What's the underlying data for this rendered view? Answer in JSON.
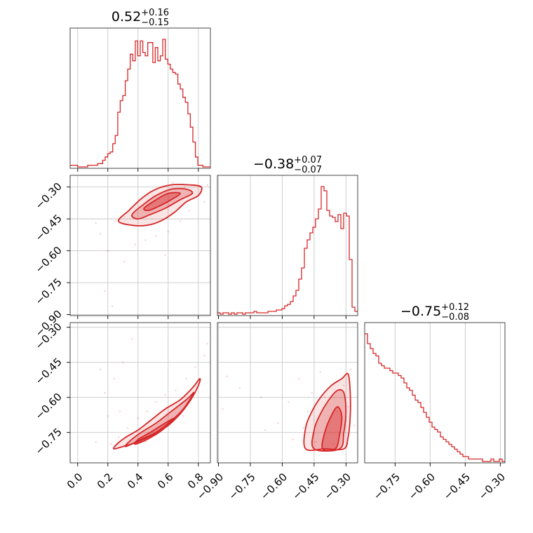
{
  "chart_data": {
    "type": "scatter",
    "plot": "corner",
    "color": "#d62728",
    "panel_count": 3,
    "parameters": [
      {
        "median": 0.52,
        "plus": 0.16,
        "minus": 0.15,
        "title": {
          "main": "0.52",
          "sup": "+0.16",
          "sub": "−0.15"
        },
        "range": [
          -0.05,
          0.88
        ],
        "ticks": [
          {
            "v": 0.0,
            "label": "0.0"
          },
          {
            "v": 0.2,
            "label": "0.2"
          },
          {
            "v": 0.4,
            "label": "0.4"
          },
          {
            "v": 0.6,
            "label": "0.6"
          },
          {
            "v": 0.8,
            "label": "0.8"
          }
        ]
      },
      {
        "median": -0.38,
        "plus": 0.07,
        "minus": 0.07,
        "title": {
          "main": "−0.38",
          "sup": "+0.07",
          "sub": "−0.07"
        },
        "range": [
          -0.905,
          -0.245
        ],
        "ticks": [
          {
            "v": -0.9,
            "label": "−0.90"
          },
          {
            "v": -0.75,
            "label": "−0.75"
          },
          {
            "v": -0.6,
            "label": "−0.60"
          },
          {
            "v": -0.45,
            "label": "−0.45"
          },
          {
            "v": -0.3,
            "label": "−0.30"
          }
        ]
      },
      {
        "median": -0.75,
        "plus": 0.12,
        "minus": 0.08,
        "title": {
          "main": "−0.75",
          "sup": "+0.12",
          "sub": "−0.08"
        },
        "range": [
          -0.88,
          -0.28
        ],
        "ticks": [
          {
            "v": -0.75,
            "label": "−0.75"
          },
          {
            "v": -0.6,
            "label": "−0.60"
          },
          {
            "v": -0.45,
            "label": "−0.45"
          },
          {
            "v": -0.3,
            "label": "−0.30"
          }
        ]
      }
    ],
    "histograms": [
      {
        "param": 0,
        "lo": -0.05,
        "hi": 0.88,
        "counts": [
          1,
          1,
          1,
          0,
          0,
          0,
          0,
          1,
          1,
          1,
          1,
          2,
          2,
          4,
          6,
          8,
          9,
          14,
          19,
          33,
          40,
          43,
          52,
          59,
          68,
          64,
          76,
          67,
          76,
          69,
          67,
          75,
          75,
          63,
          72,
          64,
          67,
          77,
          65,
          62,
          59,
          57,
          56,
          50,
          47,
          42,
          39,
          32,
          24,
          15,
          6,
          1,
          1,
          0,
          0,
          0
        ]
      },
      {
        "param": 1,
        "lo": -0.905,
        "hi": -0.245,
        "counts": [
          1,
          0,
          1,
          1,
          0,
          1,
          0,
          1,
          1,
          0,
          1,
          1,
          1,
          2,
          1,
          1,
          1,
          1,
          2,
          2,
          2,
          3,
          3,
          4,
          6,
          7,
          9,
          13,
          17,
          25,
          33,
          47,
          53,
          58,
          62,
          68,
          75,
          91,
          88,
          74,
          70,
          69,
          66,
          71,
          61,
          72,
          70,
          39,
          5,
          2
        ]
      },
      {
        "param": 2,
        "lo": -0.88,
        "hi": -0.28,
        "counts": [
          52,
          48,
          46,
          44,
          43,
          40,
          39,
          38,
          38,
          37,
          36,
          36,
          35,
          34,
          32,
          30,
          29,
          27,
          25,
          24,
          22,
          20,
          18,
          16,
          14,
          13,
          12,
          10,
          9,
          8,
          7,
          6,
          5,
          4,
          3,
          2,
          2,
          1,
          1,
          1,
          1,
          1,
          0,
          0,
          0,
          1,
          0,
          0,
          1,
          0
        ]
      }
    ],
    "pairs": [
      {
        "x": 0,
        "y": 1,
        "points": [
          [
            0.78,
            -0.29
          ],
          [
            0.71,
            -0.3
          ],
          [
            0.63,
            -0.28
          ],
          [
            0.55,
            -0.3
          ],
          [
            0.48,
            -0.32
          ],
          [
            0.41,
            -0.36
          ],
          [
            0.35,
            -0.4
          ],
          [
            0.29,
            -0.44
          ],
          [
            0.25,
            -0.46
          ],
          [
            0.2,
            -0.6
          ],
          [
            0.18,
            -0.79
          ],
          [
            0.23,
            -0.86
          ],
          [
            0.31,
            -0.65
          ],
          [
            0.38,
            -0.57
          ],
          [
            0.45,
            -0.55
          ],
          [
            0.52,
            -0.53
          ],
          [
            0.6,
            -0.51
          ],
          [
            0.68,
            -0.46
          ],
          [
            0.74,
            -0.41
          ],
          [
            0.84,
            -0.37
          ],
          [
            0.86,
            -0.29
          ],
          [
            0.15,
            -0.52
          ],
          [
            0.12,
            -0.47
          ],
          [
            0.58,
            -0.62
          ]
        ],
        "contours": [
          [
            [
              0.27,
              -0.46
            ],
            [
              0.34,
              -0.41
            ],
            [
              0.43,
              -0.35
            ],
            [
              0.52,
              -0.31
            ],
            [
              0.62,
              -0.29
            ],
            [
              0.74,
              -0.29
            ],
            [
              0.82,
              -0.3
            ],
            [
              0.8,
              -0.34
            ],
            [
              0.72,
              -0.37
            ],
            [
              0.64,
              -0.42
            ],
            [
              0.55,
              -0.46
            ],
            [
              0.46,
              -0.48
            ],
            [
              0.36,
              -0.48
            ]
          ],
          [
            [
              0.36,
              -0.43
            ],
            [
              0.44,
              -0.38
            ],
            [
              0.52,
              -0.34
            ],
            [
              0.62,
              -0.31
            ],
            [
              0.72,
              -0.31
            ],
            [
              0.76,
              -0.33
            ],
            [
              0.68,
              -0.36
            ],
            [
              0.58,
              -0.4
            ],
            [
              0.48,
              -0.43
            ],
            [
              0.4,
              -0.45
            ]
          ],
          [
            [
              0.44,
              -0.4
            ],
            [
              0.52,
              -0.36
            ],
            [
              0.6,
              -0.33
            ],
            [
              0.68,
              -0.33
            ],
            [
              0.62,
              -0.36
            ],
            [
              0.54,
              -0.39
            ],
            [
              0.47,
              -0.41
            ]
          ]
        ]
      },
      {
        "x": 0,
        "y": 2,
        "points": [
          [
            0.22,
            -0.8
          ],
          [
            0.27,
            -0.77
          ],
          [
            0.33,
            -0.73
          ],
          [
            0.4,
            -0.69
          ],
          [
            0.46,
            -0.66
          ],
          [
            0.52,
            -0.62
          ],
          [
            0.58,
            -0.59
          ],
          [
            0.65,
            -0.57
          ],
          [
            0.72,
            -0.52
          ],
          [
            0.78,
            -0.47
          ],
          [
            0.84,
            -0.42
          ],
          [
            0.86,
            -0.37
          ],
          [
            0.2,
            -0.68
          ],
          [
            0.18,
            -0.58
          ],
          [
            0.24,
            -0.52
          ],
          [
            0.3,
            -0.45
          ],
          [
            0.15,
            -0.48
          ],
          [
            0.36,
            -0.35
          ],
          [
            0.52,
            -0.76
          ],
          [
            0.6,
            -0.72
          ],
          [
            0.7,
            -0.68
          ],
          [
            0.28,
            -0.66
          ],
          [
            0.12,
            -0.79
          ],
          [
            0.45,
            -0.79
          ]
        ],
        "contours": [
          [
            [
              0.24,
              -0.82
            ],
            [
              0.3,
              -0.81
            ],
            [
              0.4,
              -0.79
            ],
            [
              0.5,
              -0.76
            ],
            [
              0.6,
              -0.72
            ],
            [
              0.68,
              -0.67
            ],
            [
              0.75,
              -0.61
            ],
            [
              0.8,
              -0.55
            ],
            [
              0.81,
              -0.52
            ],
            [
              0.76,
              -0.56
            ],
            [
              0.68,
              -0.61
            ],
            [
              0.58,
              -0.65
            ],
            [
              0.48,
              -0.7
            ],
            [
              0.4,
              -0.74
            ],
            [
              0.32,
              -0.77
            ],
            [
              0.26,
              -0.8
            ]
          ],
          [
            [
              0.32,
              -0.81
            ],
            [
              0.42,
              -0.78
            ],
            [
              0.52,
              -0.75
            ],
            [
              0.62,
              -0.7
            ],
            [
              0.7,
              -0.65
            ],
            [
              0.77,
              -0.58
            ],
            [
              0.72,
              -0.61
            ],
            [
              0.62,
              -0.66
            ],
            [
              0.52,
              -0.71
            ],
            [
              0.42,
              -0.75
            ],
            [
              0.34,
              -0.79
            ]
          ],
          [
            [
              0.38,
              -0.8
            ],
            [
              0.46,
              -0.78
            ],
            [
              0.56,
              -0.74
            ],
            [
              0.64,
              -0.69
            ],
            [
              0.58,
              -0.71
            ],
            [
              0.48,
              -0.75
            ],
            [
              0.4,
              -0.78
            ]
          ]
        ]
      },
      {
        "x": 1,
        "y": 2,
        "points": [
          [
            -0.3,
            -0.7
          ],
          [
            -0.34,
            -0.66
          ],
          [
            -0.4,
            -0.6
          ],
          [
            -0.46,
            -0.58
          ],
          [
            -0.5,
            -0.73
          ],
          [
            -0.44,
            -0.79
          ],
          [
            -0.36,
            -0.8
          ],
          [
            -0.31,
            -0.55
          ],
          [
            -0.28,
            -0.48
          ],
          [
            -0.57,
            -0.62
          ],
          [
            -0.62,
            -0.71
          ],
          [
            -0.7,
            -0.6
          ],
          [
            -0.8,
            -0.56
          ],
          [
            -0.86,
            -0.51
          ],
          [
            -0.88,
            -0.65
          ],
          [
            -0.68,
            -0.74
          ],
          [
            -0.52,
            -0.52
          ],
          [
            -0.42,
            -0.49
          ],
          [
            -0.29,
            -0.64
          ],
          [
            -0.33,
            -0.76
          ],
          [
            -0.48,
            -0.66
          ],
          [
            -0.55,
            -0.78
          ],
          [
            -0.26,
            -0.72
          ]
        ],
        "contours": [
          [
            [
              -0.49,
              -0.82
            ],
            [
              -0.49,
              -0.73
            ],
            [
              -0.46,
              -0.66
            ],
            [
              -0.42,
              -0.6
            ],
            [
              -0.37,
              -0.55
            ],
            [
              -0.32,
              -0.52
            ],
            [
              -0.29,
              -0.5
            ],
            [
              -0.28,
              -0.58
            ],
            [
              -0.28,
              -0.68
            ],
            [
              -0.29,
              -0.77
            ],
            [
              -0.31,
              -0.82
            ],
            [
              -0.4,
              -0.82
            ]
          ],
          [
            [
              -0.45,
              -0.82
            ],
            [
              -0.45,
              -0.74
            ],
            [
              -0.42,
              -0.67
            ],
            [
              -0.38,
              -0.61
            ],
            [
              -0.34,
              -0.57
            ],
            [
              -0.31,
              -0.58
            ],
            [
              -0.3,
              -0.66
            ],
            [
              -0.31,
              -0.75
            ],
            [
              -0.33,
              -0.82
            ]
          ],
          [
            [
              -0.41,
              -0.82
            ],
            [
              -0.4,
              -0.75
            ],
            [
              -0.37,
              -0.68
            ],
            [
              -0.34,
              -0.64
            ],
            [
              -0.32,
              -0.68
            ],
            [
              -0.33,
              -0.76
            ],
            [
              -0.35,
              -0.82
            ]
          ]
        ]
      }
    ],
    "grid": true,
    "legend": "none"
  }
}
